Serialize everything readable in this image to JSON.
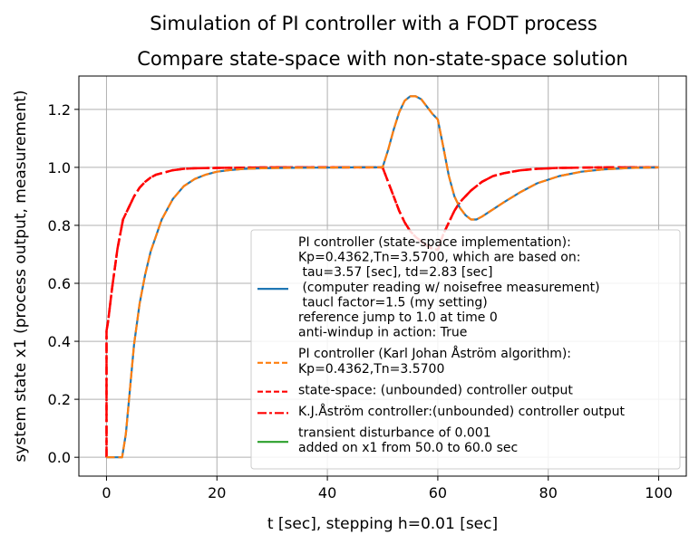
{
  "figure": {
    "suptitle": "Simulation of PI controller with a FODT process",
    "title": "Compare state-space with non-state-space solution"
  },
  "chart_data": {
    "type": "line",
    "title": "Compare state-space with non-state-space solution",
    "xlabel": "t [sec], stepping h=0.01 [sec]",
    "ylabel": "system state x1 (process output, measurement)",
    "xlim": [
      -5,
      105
    ],
    "ylim": [
      -0.065,
      1.315
    ],
    "xticks": [
      0,
      20,
      40,
      60,
      80,
      100
    ],
    "yticks": [
      0.0,
      0.2,
      0.4,
      0.6,
      0.8,
      1.0,
      1.2
    ],
    "xtick_labels": [
      "0",
      "20",
      "40",
      "60",
      "80",
      "100"
    ],
    "ytick_labels": [
      "0.0",
      "0.2",
      "0.4",
      "0.6",
      "0.8",
      "1.0",
      "1.2"
    ],
    "grid": true,
    "legend_position": "lower-right",
    "series": [
      {
        "name": "PI controller (state-space implementation):\nKp=0.4362,Tn=3.5700, which are based on:\n  tau=3.57 [sec], td=2.83 [sec]\n  (computer reading w/ noisefree measurement)\n  taucl factor=1.5 (my setting)\nreference jump to 1.0 at time 0\nanti-windup in action: True",
        "color": "#1f77b4",
        "style": "solid",
        "x": [
          0,
          2.83,
          3.5,
          5,
          6,
          7,
          8,
          10,
          12,
          14,
          16,
          18,
          20,
          22,
          25,
          28,
          32,
          38,
          45,
          50,
          51,
          52,
          53,
          54,
          55,
          56,
          57,
          58,
          59,
          60,
          61,
          62,
          63,
          64,
          65,
          66,
          67,
          68,
          70,
          72,
          75,
          78,
          82,
          86,
          90,
          95,
          100
        ],
        "y": [
          0,
          0,
          0.08,
          0.39,
          0.53,
          0.63,
          0.71,
          0.82,
          0.89,
          0.935,
          0.96,
          0.975,
          0.985,
          0.99,
          0.995,
          0.997,
          0.998,
          0.999,
          1.0,
          1.0,
          1.06,
          1.13,
          1.19,
          1.23,
          1.245,
          1.245,
          1.235,
          1.21,
          1.185,
          1.165,
          1.07,
          0.97,
          0.9,
          0.86,
          0.835,
          0.82,
          0.82,
          0.83,
          0.855,
          0.88,
          0.915,
          0.945,
          0.97,
          0.985,
          0.993,
          0.998,
          1.0
        ]
      },
      {
        "name": "PI controller (Karl Johan Åström algorithm):\nKp=0.4362,Tn=3.5700",
        "color": "#ff7f0e",
        "style": "dashed",
        "x": [
          0,
          2.83,
          3.5,
          5,
          6,
          7,
          8,
          10,
          12,
          14,
          16,
          18,
          20,
          22,
          25,
          28,
          32,
          38,
          45,
          50,
          51,
          52,
          53,
          54,
          55,
          56,
          57,
          58,
          59,
          60,
          61,
          62,
          63,
          64,
          65,
          66,
          67,
          68,
          70,
          72,
          75,
          78,
          82,
          86,
          90,
          95,
          100
        ],
        "y": [
          0,
          0,
          0.08,
          0.39,
          0.53,
          0.63,
          0.71,
          0.82,
          0.89,
          0.935,
          0.96,
          0.975,
          0.985,
          0.99,
          0.995,
          0.997,
          0.998,
          0.999,
          1.0,
          1.0,
          1.06,
          1.13,
          1.19,
          1.23,
          1.245,
          1.245,
          1.235,
          1.21,
          1.185,
          1.165,
          1.07,
          0.97,
          0.9,
          0.86,
          0.835,
          0.82,
          0.82,
          0.83,
          0.855,
          0.88,
          0.915,
          0.945,
          0.97,
          0.985,
          0.993,
          0.998,
          1.0
        ]
      },
      {
        "name": "state-space: (unbounded) controller output",
        "color": "#ff0000",
        "style": "dashed",
        "x": [
          0,
          0,
          0.3,
          1,
          2,
          3,
          4,
          5,
          6,
          7,
          8,
          9,
          10,
          12,
          14,
          16,
          20,
          25,
          30,
          40,
          50,
          51,
          52,
          53,
          54,
          55,
          56,
          57,
          58,
          59,
          60,
          61,
          62,
          63,
          64,
          65,
          66,
          67,
          68,
          70,
          72,
          75,
          78,
          82,
          86,
          90,
          95,
          100
        ],
        "y": [
          0,
          0.4362,
          0.47,
          0.58,
          0.72,
          0.82,
          0.86,
          0.9,
          0.93,
          0.95,
          0.965,
          0.975,
          0.98,
          0.99,
          0.995,
          0.997,
          0.998,
          0.999,
          1.0,
          1.0,
          1.0,
          0.95,
          0.9,
          0.85,
          0.81,
          0.78,
          0.76,
          0.745,
          0.73,
          0.72,
          0.715,
          0.77,
          0.81,
          0.85,
          0.88,
          0.9,
          0.92,
          0.935,
          0.95,
          0.97,
          0.98,
          0.99,
          0.995,
          0.998,
          0.999,
          1.0,
          1.0,
          1.0
        ]
      },
      {
        "name": "K.J.Åström controller:(unbounded) controller output",
        "color": "#ff0000",
        "style": "dashdot",
        "x": [
          0,
          0,
          0.3,
          1,
          2,
          3,
          4,
          5,
          6,
          7,
          8,
          9,
          10,
          12,
          14,
          16,
          20,
          25,
          30,
          40,
          50,
          51,
          52,
          53,
          54,
          55,
          56,
          57,
          58,
          59,
          60,
          61,
          62,
          63,
          64,
          65,
          66,
          67,
          68,
          70,
          72,
          75,
          78,
          82,
          86,
          90,
          95,
          100
        ],
        "y": [
          0,
          0.4362,
          0.47,
          0.58,
          0.72,
          0.82,
          0.86,
          0.9,
          0.93,
          0.95,
          0.965,
          0.975,
          0.98,
          0.99,
          0.995,
          0.997,
          0.998,
          0.999,
          1.0,
          1.0,
          1.0,
          0.95,
          0.9,
          0.85,
          0.81,
          0.78,
          0.76,
          0.745,
          0.73,
          0.72,
          0.715,
          0.77,
          0.81,
          0.85,
          0.88,
          0.9,
          0.92,
          0.935,
          0.95,
          0.97,
          0.98,
          0.99,
          0.995,
          0.998,
          0.999,
          1.0,
          1.0,
          1.0
        ]
      },
      {
        "name": "transient disturbance of 0.001\nadded on x1 from 50.0 to 60.0 sec",
        "color": "#2ca02c",
        "style": "solid",
        "x": [],
        "y": []
      }
    ]
  }
}
